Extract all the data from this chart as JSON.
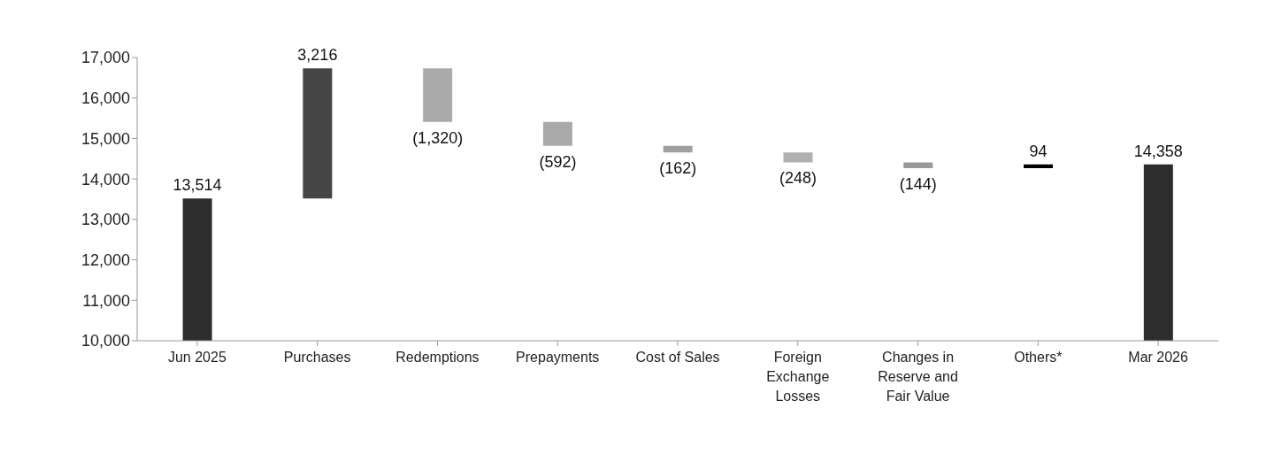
{
  "chart_data": {
    "type": "bar",
    "categories": [
      "Jun 2025",
      "Purchases",
      "Redemptions",
      "Prepayments",
      "Cost of Sales",
      "Foreign Exchange Losses",
      "Changes in Reserve and Fair Value",
      "Others*",
      "Mar 2026"
    ],
    "values": [
      13514,
      3216,
      -1320,
      -592,
      -162,
      -248,
      -144,
      94,
      14358
    ],
    "base": [
      0,
      13514,
      16730,
      15410,
      14818,
      14656,
      14408,
      14264,
      0
    ],
    "value_labels": [
      "13,514",
      "3,216",
      "(1,320)",
      "(592)",
      "(162)",
      "(248)",
      "(144)",
      "94",
      "14,358"
    ],
    "colors": [
      "#2d2d2d",
      "#454545",
      "#aaaaaa",
      "#aaaaaa",
      "#a0a0a0",
      "#b0b0b0",
      "#999999",
      "#000000",
      "#2d2d2d"
    ],
    "ylim": [
      10000,
      17000
    ],
    "yticks": [
      {
        "value": 10000,
        "label": "10,000"
      },
      {
        "value": 11000,
        "label": "11,000"
      },
      {
        "value": 12000,
        "label": "12,000"
      },
      {
        "value": 13000,
        "label": "13,000"
      },
      {
        "value": 14000,
        "label": "14,000"
      },
      {
        "value": 15000,
        "label": "15,000"
      },
      {
        "value": 16000,
        "label": "16,000"
      },
      {
        "value": 17000,
        "label": "17,000"
      }
    ],
    "grid": false,
    "legend": false
  }
}
